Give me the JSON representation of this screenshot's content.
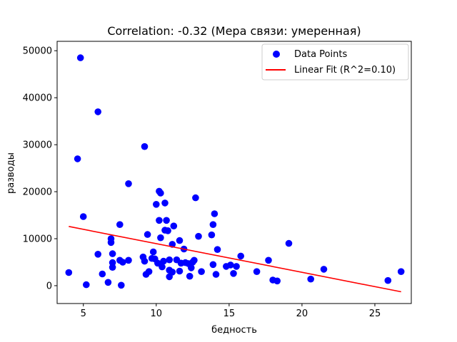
{
  "chart_data": {
    "type": "scatter",
    "title": "Correlation: -0.32 (Мера связи: умеренная)",
    "xlabel": "бедность",
    "ylabel": "разводы",
    "xlim": [
      3.2,
      27.5
    ],
    "ylim": [
      -3800,
      52000
    ],
    "xticks": [
      5,
      10,
      15,
      20,
      25
    ],
    "yticks": [
      0,
      10000,
      20000,
      30000,
      40000,
      50000
    ],
    "grid": false,
    "legend_position": "top-right",
    "series": [
      {
        "name": "Data Points",
        "kind": "scatter",
        "color": "#0000ff",
        "points": [
          [
            4.0,
            2800
          ],
          [
            4.6,
            27000
          ],
          [
            4.8,
            48500
          ],
          [
            5.0,
            14700
          ],
          [
            5.2,
            200
          ],
          [
            6.0,
            37000
          ],
          [
            6.0,
            6700
          ],
          [
            6.3,
            2500
          ],
          [
            6.7,
            700
          ],
          [
            6.9,
            9200
          ],
          [
            6.9,
            10000
          ],
          [
            7.0,
            6800
          ],
          [
            7.0,
            4900
          ],
          [
            7.0,
            3900
          ],
          [
            7.5,
            13000
          ],
          [
            7.5,
            5400
          ],
          [
            7.6,
            100
          ],
          [
            7.7,
            5000
          ],
          [
            8.1,
            21700
          ],
          [
            8.1,
            5400
          ],
          [
            9.1,
            6100
          ],
          [
            9.2,
            29600
          ],
          [
            9.2,
            5200
          ],
          [
            9.3,
            2400
          ],
          [
            9.4,
            10900
          ],
          [
            9.5,
            3000
          ],
          [
            9.7,
            5800
          ],
          [
            9.8,
            7200
          ],
          [
            9.9,
            5700
          ],
          [
            10.0,
            17300
          ],
          [
            10.1,
            4800
          ],
          [
            10.2,
            20100
          ],
          [
            10.2,
            13900
          ],
          [
            10.3,
            19700
          ],
          [
            10.3,
            10200
          ],
          [
            10.4,
            4000
          ],
          [
            10.5,
            5200
          ],
          [
            10.6,
            17600
          ],
          [
            10.6,
            11800
          ],
          [
            10.7,
            13900
          ],
          [
            10.8,
            11700
          ],
          [
            10.9,
            5500
          ],
          [
            10.9,
            3300
          ],
          [
            10.9,
            1900
          ],
          [
            11.1,
            8800
          ],
          [
            11.1,
            2900
          ],
          [
            11.2,
            12700
          ],
          [
            11.4,
            5500
          ],
          [
            11.6,
            9600
          ],
          [
            11.6,
            3100
          ],
          [
            11.7,
            4800
          ],
          [
            11.9,
            7800
          ],
          [
            12.0,
            4900
          ],
          [
            12.2,
            4700
          ],
          [
            12.3,
            2000
          ],
          [
            12.4,
            3800
          ],
          [
            12.5,
            5000
          ],
          [
            12.6,
            5400
          ],
          [
            12.7,
            18700
          ],
          [
            12.9,
            10500
          ],
          [
            13.1,
            3000
          ],
          [
            13.8,
            10800
          ],
          [
            13.9,
            13000
          ],
          [
            13.9,
            4500
          ],
          [
            14.0,
            15300
          ],
          [
            14.1,
            2400
          ],
          [
            14.2,
            7700
          ],
          [
            14.8,
            4100
          ],
          [
            15.1,
            4400
          ],
          [
            15.3,
            2600
          ],
          [
            15.5,
            4100
          ],
          [
            15.8,
            6300
          ],
          [
            16.9,
            3000
          ],
          [
            17.7,
            5400
          ],
          [
            18.0,
            1200
          ],
          [
            18.3,
            1000
          ],
          [
            19.1,
            9000
          ],
          [
            20.6,
            1400
          ],
          [
            21.5,
            3500
          ],
          [
            25.9,
            1100
          ],
          [
            26.8,
            3000
          ]
        ]
      },
      {
        "name": "Linear Fit (R^2=0.10)",
        "kind": "line",
        "color": "#ff0000",
        "x": [
          4.0,
          26.8
        ],
        "y": [
          12600,
          -1300
        ]
      }
    ]
  }
}
